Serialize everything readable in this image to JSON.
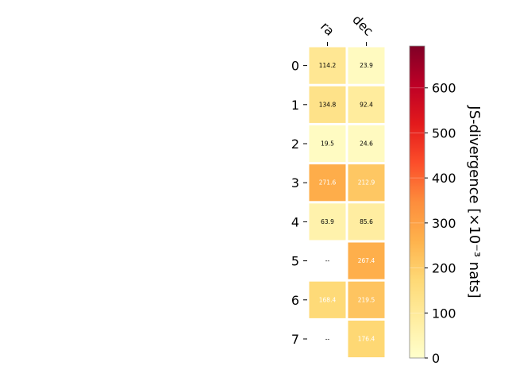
{
  "chart_data": {
    "type": "heatmap",
    "columns": [
      "ra",
      "dec"
    ],
    "rows": [
      "0",
      "1",
      "2",
      "3",
      "4",
      "5",
      "6",
      "7"
    ],
    "values": [
      [
        114.2,
        23.9
      ],
      [
        134.8,
        92.4
      ],
      [
        19.5,
        24.6
      ],
      [
        271.6,
        212.9
      ],
      [
        63.9,
        85.6
      ],
      [
        null,
        267.4
      ],
      [
        168.4,
        219.5
      ],
      [
        null,
        176.4
      ]
    ],
    "cell_labels": [
      [
        "114.2",
        "23.9"
      ],
      [
        "134.8",
        "92.4"
      ],
      [
        "19.5",
        "24.6"
      ],
      [
        "271.6",
        "212.9"
      ],
      [
        "63.9",
        "85.6"
      ],
      [
        "--",
        "267.4"
      ],
      [
        "168.4",
        "219.5"
      ],
      [
        "--",
        "176.4"
      ]
    ],
    "colorbar": {
      "label": "JS-divergence [×10⁻³ nats]",
      "range": [
        0,
        693
      ],
      "ticks": [
        "0",
        "100",
        "200",
        "300",
        "400",
        "500",
        "600"
      ],
      "tick_values": [
        0,
        100,
        200,
        300,
        400,
        500,
        600
      ],
      "colormap": "YlOrRd",
      "stops": [
        "#ffffcc",
        "#ffeda0",
        "#fed976",
        "#feb24c",
        "#fd8d3c",
        "#fc4e2a",
        "#e31a1c",
        "#bd0026",
        "#800026"
      ]
    },
    "text_color_threshold": 160,
    "grid": false
  }
}
